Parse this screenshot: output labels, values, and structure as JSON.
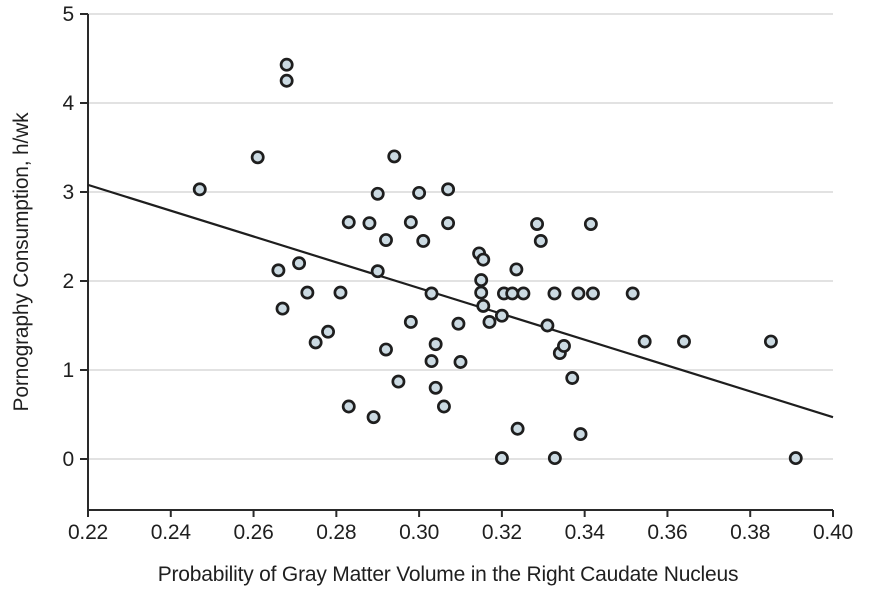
{
  "chart_data": {
    "type": "scatter",
    "title": "",
    "xlabel": "Probability of Gray Matter Volume in the Right Caudate Nucleus",
    "ylabel": "Pornography Consumption, h/wk",
    "xlim": [
      0.22,
      0.4
    ],
    "ylim": [
      -0.57,
      5
    ],
    "xticks": [
      0.22,
      0.24,
      0.26,
      0.28,
      0.3,
      0.32,
      0.34,
      0.36,
      0.38,
      0.4
    ],
    "yticks": [
      0,
      1,
      2,
      3,
      4,
      5
    ],
    "grid": "horizontal-only",
    "legend": "none",
    "points": [
      [
        0.247,
        3.03
      ],
      [
        0.261,
        3.39
      ],
      [
        0.268,
        4.43
      ],
      [
        0.268,
        4.25
      ],
      [
        0.266,
        2.12
      ],
      [
        0.271,
        2.2
      ],
      [
        0.267,
        1.69
      ],
      [
        0.273,
        1.87
      ],
      [
        0.275,
        1.31
      ],
      [
        0.278,
        1.43
      ],
      [
        0.281,
        1.87
      ],
      [
        0.283,
        2.66
      ],
      [
        0.283,
        0.59
      ],
      [
        0.288,
        2.65
      ],
      [
        0.289,
        0.47
      ],
      [
        0.29,
        2.98
      ],
      [
        0.29,
        2.11
      ],
      [
        0.292,
        2.46
      ],
      [
        0.292,
        1.23
      ],
      [
        0.294,
        3.4
      ],
      [
        0.295,
        0.87
      ],
      [
        0.298,
        2.66
      ],
      [
        0.298,
        1.54
      ],
      [
        0.3,
        2.99
      ],
      [
        0.301,
        2.45
      ],
      [
        0.303,
        1.86
      ],
      [
        0.304,
        1.29
      ],
      [
        0.303,
        1.1
      ],
      [
        0.304,
        0.8
      ],
      [
        0.306,
        0.59
      ],
      [
        0.307,
        3.03
      ],
      [
        0.307,
        2.65
      ],
      [
        0.3095,
        1.52
      ],
      [
        0.31,
        1.09
      ],
      [
        0.3145,
        2.31
      ],
      [
        0.3155,
        2.24
      ],
      [
        0.315,
        2.01
      ],
      [
        0.315,
        1.87
      ],
      [
        0.3155,
        1.72
      ],
      [
        0.317,
        1.54
      ],
      [
        0.32,
        1.61
      ],
      [
        0.3205,
        1.86
      ],
      [
        0.3225,
        1.86
      ],
      [
        0.3252,
        1.86
      ],
      [
        0.3235,
        2.13
      ],
      [
        0.32,
        0.01
      ],
      [
        0.3238,
        0.34
      ],
      [
        0.3285,
        2.64
      ],
      [
        0.3294,
        2.45
      ],
      [
        0.331,
        1.5
      ],
      [
        0.3327,
        1.86
      ],
      [
        0.334,
        1.19
      ],
      [
        0.335,
        1.27
      ],
      [
        0.3328,
        0.01
      ],
      [
        0.3385,
        1.86
      ],
      [
        0.342,
        1.86
      ],
      [
        0.337,
        0.91
      ],
      [
        0.339,
        0.28
      ],
      [
        0.3415,
        2.64
      ],
      [
        0.3516,
        1.86
      ],
      [
        0.3545,
        1.32
      ],
      [
        0.364,
        1.32
      ],
      [
        0.385,
        1.32
      ],
      [
        0.391,
        0.01
      ]
    ],
    "trend_line": {
      "x": [
        0.22,
        0.4
      ],
      "y": [
        3.08,
        0.47
      ]
    },
    "colors": {
      "marker_fill": "#cbdae2",
      "marker_stroke": "#1e1e1e",
      "trend_line": "#1e1e1e",
      "grid": "#d9d9d9",
      "spine": "#2a2a2a",
      "text": "#1f1f1f"
    }
  }
}
